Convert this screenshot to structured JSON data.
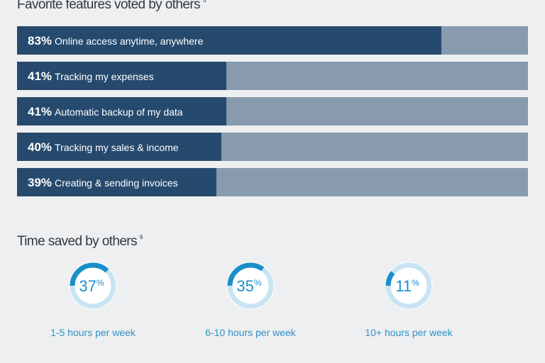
{
  "features": {
    "title": "Favorite features voted by others",
    "footnote": "5"
  },
  "time_saved": {
    "title": "Time saved by others",
    "footnote": "6"
  },
  "colors": {
    "bar_fill": "#264a6e",
    "bar_track": "#889bae",
    "gauge_arc": "#1a8fc9",
    "gauge_track": "#c9e4f2",
    "gauge_text": "#1a8fc9"
  },
  "chart_data": [
    {
      "type": "bar",
      "orientation": "horizontal",
      "title": "Favorite features voted by others",
      "categories": [
        "Online access anytime, anywhere",
        "Tracking my expenses",
        "Automatic backup of my data",
        "Tracking my sales & income",
        "Creating & sending invoices"
      ],
      "values": [
        83,
        41,
        41,
        40,
        39
      ],
      "value_labels": [
        "83%",
        "41%",
        "41%",
        "40%",
        "39%"
      ],
      "ylim": [
        0,
        100
      ]
    },
    {
      "type": "pie",
      "variant": "donut-gauges",
      "title": "Time saved by others",
      "categories": [
        "1-5 hours per week",
        "6-10 hours per week",
        "10+ hours per week"
      ],
      "values": [
        37,
        35,
        11
      ],
      "value_labels": [
        "37",
        "35",
        "11"
      ],
      "unit": "%"
    }
  ]
}
